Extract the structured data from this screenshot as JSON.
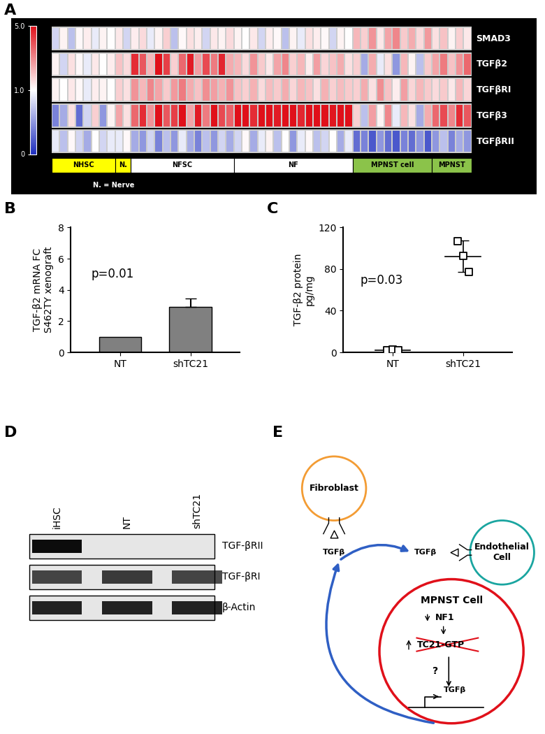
{
  "chart_data": [
    {
      "panel": "A",
      "type": "heatmap",
      "rows": [
        "SMAD3",
        "TGFβ2",
        "TGFβRI",
        "TGFβ3",
        "TGFβRII"
      ],
      "groups": [
        {
          "name": "NHSC",
          "count": 8,
          "color": "#ffff00"
        },
        {
          "name": "N.",
          "count": 2,
          "color": "#ffff00"
        },
        {
          "name": "NFSC",
          "count": 13,
          "color": "#ffffff"
        },
        {
          "name": "NF",
          "count": 15,
          "color": "#ffffff"
        },
        {
          "name": "MPNST cell",
          "count": 10,
          "color": "#8bc34a"
        },
        {
          "name": "MPNST",
          "count": 5,
          "color": "#8bc34a"
        }
      ],
      "note": "N. = Nerve",
      "cells": [
        [
          0.8,
          1.2,
          0.7,
          1.1,
          1.3,
          0.9,
          1.2,
          1.0,
          1.4,
          0.8,
          1.3,
          1.6,
          0.9,
          1.2,
          1.8,
          0.7,
          1.1,
          1.5,
          1.3,
          0.8,
          1.4,
          1.2,
          1.6,
          1.2,
          1.0,
          1.4,
          0.8,
          1.3,
          1.1,
          0.7,
          1.2,
          0.9,
          1.5,
          1.3,
          1.1,
          0.8,
          1.2,
          1.0,
          2.2,
          1.8,
          2.8,
          1.4,
          2.5,
          3.0,
          1.9,
          2.4,
          1.6,
          2.7,
          1.5,
          2.0,
          1.2,
          1.8,
          1.4
        ],
        [
          1.2,
          0.8,
          1.5,
          1.1,
          0.9,
          1.4,
          1.0,
          1.3,
          2.0,
          1.6,
          4.5,
          3.8,
          2.2,
          5.0,
          4.2,
          1.8,
          3.5,
          4.8,
          2.6,
          4.0,
          3.2,
          4.6,
          2.4,
          2.2,
          1.6,
          2.8,
          1.9,
          1.4,
          2.5,
          3.0,
          1.8,
          2.2,
          1.3,
          2.6,
          1.7,
          2.0,
          2.4,
          1.5,
          1.8,
          0.6,
          2.4,
          0.9,
          1.5,
          0.5,
          2.2,
          1.2,
          0.7,
          1.9,
          2.5,
          3.2,
          2.0,
          2.8,
          3.5
        ],
        [
          1.2,
          1.0,
          1.4,
          1.1,
          0.9,
          1.3,
          1.2,
          1.0,
          1.8,
          1.5,
          2.8,
          2.2,
          3.0,
          2.5,
          1.9,
          2.7,
          3.2,
          2.4,
          2.0,
          2.9,
          2.6,
          2.3,
          2.8,
          2.0,
          1.8,
          2.3,
          1.6,
          2.1,
          1.9,
          2.4,
          1.7,
          2.2,
          2.0,
          1.5,
          2.3,
          1.8,
          2.1,
          1.9,
          1.8,
          2.4,
          1.5,
          2.9,
          2.0,
          1.3,
          2.6,
          1.7,
          2.2,
          1.9,
          1.6,
          1.9,
          1.4,
          2.2,
          1.7
        ],
        [
          0.4,
          0.6,
          1.5,
          0.3,
          0.8,
          1.8,
          0.5,
          1.2,
          2.5,
          1.5,
          3.5,
          4.5,
          2.8,
          5.0,
          3.8,
          4.2,
          5.0,
          2.5,
          4.8,
          3.2,
          5.0,
          4.0,
          3.6,
          5.0,
          5.0,
          4.5,
          5.0,
          5.0,
          4.8,
          5.0,
          5.0,
          4.6,
          5.0,
          5.0,
          5.0,
          4.9,
          5.0,
          5.0,
          1.8,
          0.7,
          2.6,
          1.2,
          3.0,
          0.9,
          2.2,
          1.5,
          0.6,
          2.4,
          3.5,
          4.0,
          3.0,
          4.5,
          3.8
        ],
        [
          0.9,
          0.7,
          1.1,
          0.8,
          0.6,
          1.0,
          0.8,
          0.9,
          0.9,
          1.1,
          0.6,
          0.5,
          0.8,
          0.4,
          0.7,
          0.5,
          0.9,
          0.6,
          0.4,
          0.7,
          0.5,
          0.8,
          0.6,
          0.8,
          1.1,
          0.6,
          0.9,
          1.2,
          0.7,
          1.0,
          0.5,
          0.9,
          1.1,
          0.7,
          0.8,
          1.0,
          0.6,
          0.9,
          0.3,
          0.4,
          0.2,
          0.5,
          0.3,
          0.2,
          0.4,
          0.3,
          0.5,
          0.2,
          0.5,
          0.7,
          0.4,
          0.6,
          0.5
        ]
      ],
      "colorbar": {
        "range": [
          0,
          5
        ],
        "center": 1,
        "ticks": [
          0,
          {
            "value": 1,
            "label": "1.0"
          },
          {
            "value": 5,
            "label": "5.0"
          }
        ]
      }
    },
    {
      "panel": "B",
      "type": "bar",
      "categories": [
        "NT",
        "shTC21"
      ],
      "values": [
        1,
        2.9
      ],
      "errors": [
        null,
        0.55
      ],
      "color": "#808080",
      "y_label": "TGF-β2 mRNA FC\nS462TY xenograft",
      "annotation": "p=0.01",
      "ylim": [
        0,
        8
      ],
      "yticks": [
        0,
        2,
        4,
        6,
        8
      ]
    },
    {
      "panel": "C",
      "type": "scatter",
      "categories": [
        "NT",
        "shTC21"
      ],
      "points": [
        [
          2,
          3,
          2
        ],
        [
          107,
          93,
          77
        ]
      ],
      "means": [
        2.3,
        92.3
      ],
      "errors": [
        0.5,
        15
      ],
      "marker": "square",
      "color": "#000000",
      "y_label": "TGF-β2 protein\npg/mg",
      "annotation": "p=0.03",
      "ylim": [
        0,
        120
      ],
      "yticks": [
        0,
        40,
        80,
        120
      ]
    }
  ],
  "blot": {
    "panel": "D",
    "lanes": [
      "iHSC",
      "NT",
      "shTC21"
    ],
    "bands": [
      {
        "label": "TGF-βRII",
        "intensity": [
          0.95,
          0,
          0
        ]
      },
      {
        "label": "TGF-βRI",
        "intensity": [
          0.7,
          0.75,
          0.7
        ]
      },
      {
        "label": "β-Actin",
        "intensity": [
          0.85,
          0.85,
          0.85
        ]
      }
    ]
  },
  "diagram": {
    "panel": "E",
    "nodes": {
      "fibroblast": "Fibroblast",
      "endothelial": "Endothelial\nCell",
      "mpnst": "MPNST Cell"
    },
    "ligand": "TGFβ",
    "pathway": [
      "NF1",
      "TC21-GTP",
      "?",
      "TGFβ"
    ]
  }
}
